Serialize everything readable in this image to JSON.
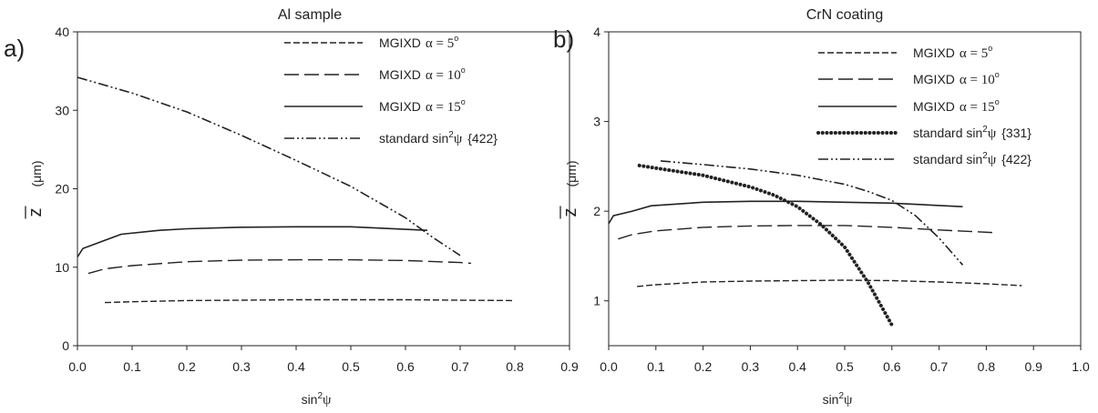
{
  "chart_data": [
    {
      "type": "line",
      "panel_label": "a)",
      "title": "Al sample",
      "xlabel": "sin",
      "xlabel_sup": "2",
      "xlabel_greek": "ψ",
      "ylabel_var": "z",
      "ylabel_unit": "(μm)",
      "xlim": [
        0,
        0.9
      ],
      "ylim": [
        0,
        40
      ],
      "xticks": [
        "0.0",
        "0.1",
        "0.2",
        "0.3",
        "0.4",
        "0.5",
        "0.6",
        "0.7",
        "0.8",
        "0.9"
      ],
      "yticks": [
        "0",
        "10",
        "20",
        "30",
        "40"
      ],
      "legend": "top-right",
      "series": [
        {
          "name": "MGIXD",
          "alpha_label": "α = 5",
          "deg": "o",
          "style": "short-dash",
          "x": [
            0.05,
            0.1,
            0.2,
            0.3,
            0.4,
            0.5,
            0.6,
            0.7,
            0.795
          ],
          "y": [
            5.5,
            5.6,
            5.75,
            5.8,
            5.85,
            5.85,
            5.85,
            5.8,
            5.75
          ]
        },
        {
          "name": "MGIXD",
          "alpha_label": "α = 10",
          "deg": "o",
          "style": "long-dash",
          "x": [
            0.02,
            0.05,
            0.1,
            0.2,
            0.3,
            0.4,
            0.5,
            0.6,
            0.7,
            0.72
          ],
          "y": [
            9.2,
            9.8,
            10.2,
            10.7,
            10.9,
            10.95,
            10.95,
            10.85,
            10.6,
            10.5
          ]
        },
        {
          "name": "MGIXD",
          "alpha_label": "α = 15",
          "deg": "o",
          "style": "solid",
          "x": [
            0.0,
            0.01,
            0.08,
            0.15,
            0.2,
            0.3,
            0.4,
            0.5,
            0.64
          ],
          "y": [
            11.3,
            12.4,
            14.2,
            14.7,
            14.9,
            15.1,
            15.15,
            15.15,
            14.7
          ]
        },
        {
          "name": "standard sin",
          "sup": "2",
          "greek": "ψ",
          "hkl": "{422}",
          "style": "dash-dot-dot",
          "x": [
            0.0,
            0.1,
            0.2,
            0.3,
            0.4,
            0.5,
            0.6,
            0.65,
            0.7
          ],
          "y": [
            34.2,
            32.2,
            29.8,
            26.8,
            23.6,
            20.3,
            16.3,
            13.8,
            11.5
          ]
        }
      ]
    },
    {
      "type": "line",
      "panel_label": "b)",
      "title": "CrN coating",
      "xlabel": "sin",
      "xlabel_sup": "2",
      "xlabel_greek": "ψ",
      "ylabel_var": "z",
      "ylabel_unit": "(μm)",
      "xlim": [
        0,
        1.0
      ],
      "ylim": [
        0.5,
        4
      ],
      "xticks": [
        "0.0",
        "0.1",
        "0.2",
        "0.3",
        "0.4",
        "0.5",
        "0.6",
        "0.7",
        "0.8",
        "0.9",
        "1.0"
      ],
      "yticks": [
        "1",
        "2",
        "3",
        "4"
      ],
      "legend": "top-right",
      "series": [
        {
          "name": "MGIXD",
          "alpha_label": "α = 5",
          "deg": "o",
          "style": "short-dash",
          "x": [
            0.06,
            0.1,
            0.2,
            0.3,
            0.4,
            0.5,
            0.6,
            0.7,
            0.8,
            0.875
          ],
          "y": [
            1.16,
            1.18,
            1.21,
            1.22,
            1.225,
            1.23,
            1.225,
            1.21,
            1.19,
            1.17
          ]
        },
        {
          "name": "MGIXD",
          "alpha_label": "α = 10",
          "deg": "o",
          "style": "long-dash",
          "x": [
            0.02,
            0.05,
            0.1,
            0.2,
            0.3,
            0.4,
            0.5,
            0.6,
            0.7,
            0.82
          ],
          "y": [
            1.69,
            1.74,
            1.78,
            1.82,
            1.835,
            1.84,
            1.84,
            1.82,
            1.79,
            1.76
          ]
        },
        {
          "name": "MGIXD",
          "alpha_label": "α = 15",
          "deg": "o",
          "style": "solid",
          "x": [
            0.0,
            0.01,
            0.05,
            0.09,
            0.2,
            0.3,
            0.4,
            0.5,
            0.6,
            0.75
          ],
          "y": [
            1.86,
            1.95,
            2.0,
            2.06,
            2.1,
            2.11,
            2.11,
            2.1,
            2.09,
            2.05
          ]
        },
        {
          "name": "standard sin",
          "sup": "2",
          "greek": "ψ",
          "hkl": "{331}",
          "style": "dotted",
          "x": [
            0.065,
            0.1,
            0.2,
            0.3,
            0.35,
            0.4,
            0.45,
            0.5,
            0.55,
            0.6
          ],
          "y": [
            2.51,
            2.48,
            2.4,
            2.27,
            2.18,
            2.05,
            1.85,
            1.6,
            1.2,
            0.73
          ]
        },
        {
          "name": "standard sin",
          "sup": "2",
          "greek": "ψ",
          "hkl": "{422}",
          "style": "dash-dot-dot",
          "x": [
            0.11,
            0.2,
            0.3,
            0.4,
            0.5,
            0.55,
            0.6,
            0.65,
            0.7,
            0.75
          ],
          "y": [
            2.56,
            2.52,
            2.47,
            2.4,
            2.3,
            2.22,
            2.12,
            1.95,
            1.7,
            1.4
          ]
        }
      ]
    }
  ]
}
